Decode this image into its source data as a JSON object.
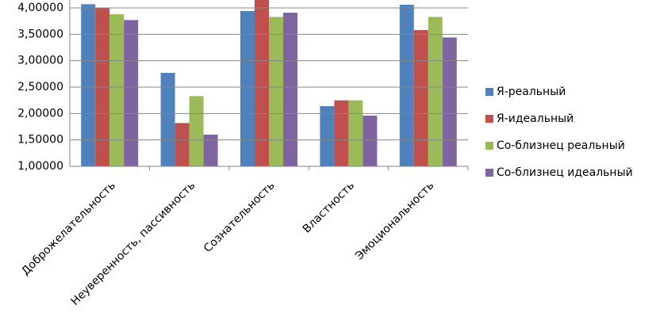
{
  "chart_data": {
    "type": "bar",
    "categories": [
      "Доброжелательность",
      "Неуверенность, пассивность",
      "Сознательность",
      "Властность",
      "Эмоциональность"
    ],
    "series": [
      {
        "name": "Я-реальный",
        "color": "#4f81bd",
        "values": [
          4.07,
          2.77,
          3.94,
          2.14,
          4.06
        ]
      },
      {
        "name": "Я-идеальный",
        "color": "#c0504d",
        "values": [
          4.0,
          1.82,
          4.2,
          2.25,
          3.58
        ]
      },
      {
        "name": "Со-близнец реальный",
        "color": "#9bbb59",
        "values": [
          3.88,
          2.33,
          3.83,
          2.25,
          3.83
        ]
      },
      {
        "name": "Со-близнец идеальный",
        "color": "#8064a2",
        "values": [
          3.77,
          1.6,
          3.91,
          1.96,
          3.44
        ]
      }
    ],
    "ylim": [
      1,
      4.15
    ],
    "yticks": [
      {
        "value": 1,
        "label": "1,00000"
      },
      {
        "value": 1.5,
        "label": "1,50000"
      },
      {
        "value": 2,
        "label": "2,00000"
      },
      {
        "value": 2.5,
        "label": "2,50000"
      },
      {
        "value": 3,
        "label": "3,00000"
      },
      {
        "value": 3.5,
        "label": "3,50000"
      },
      {
        "value": 4,
        "label": "4,00000"
      }
    ],
    "grid": true,
    "legend": "right"
  }
}
